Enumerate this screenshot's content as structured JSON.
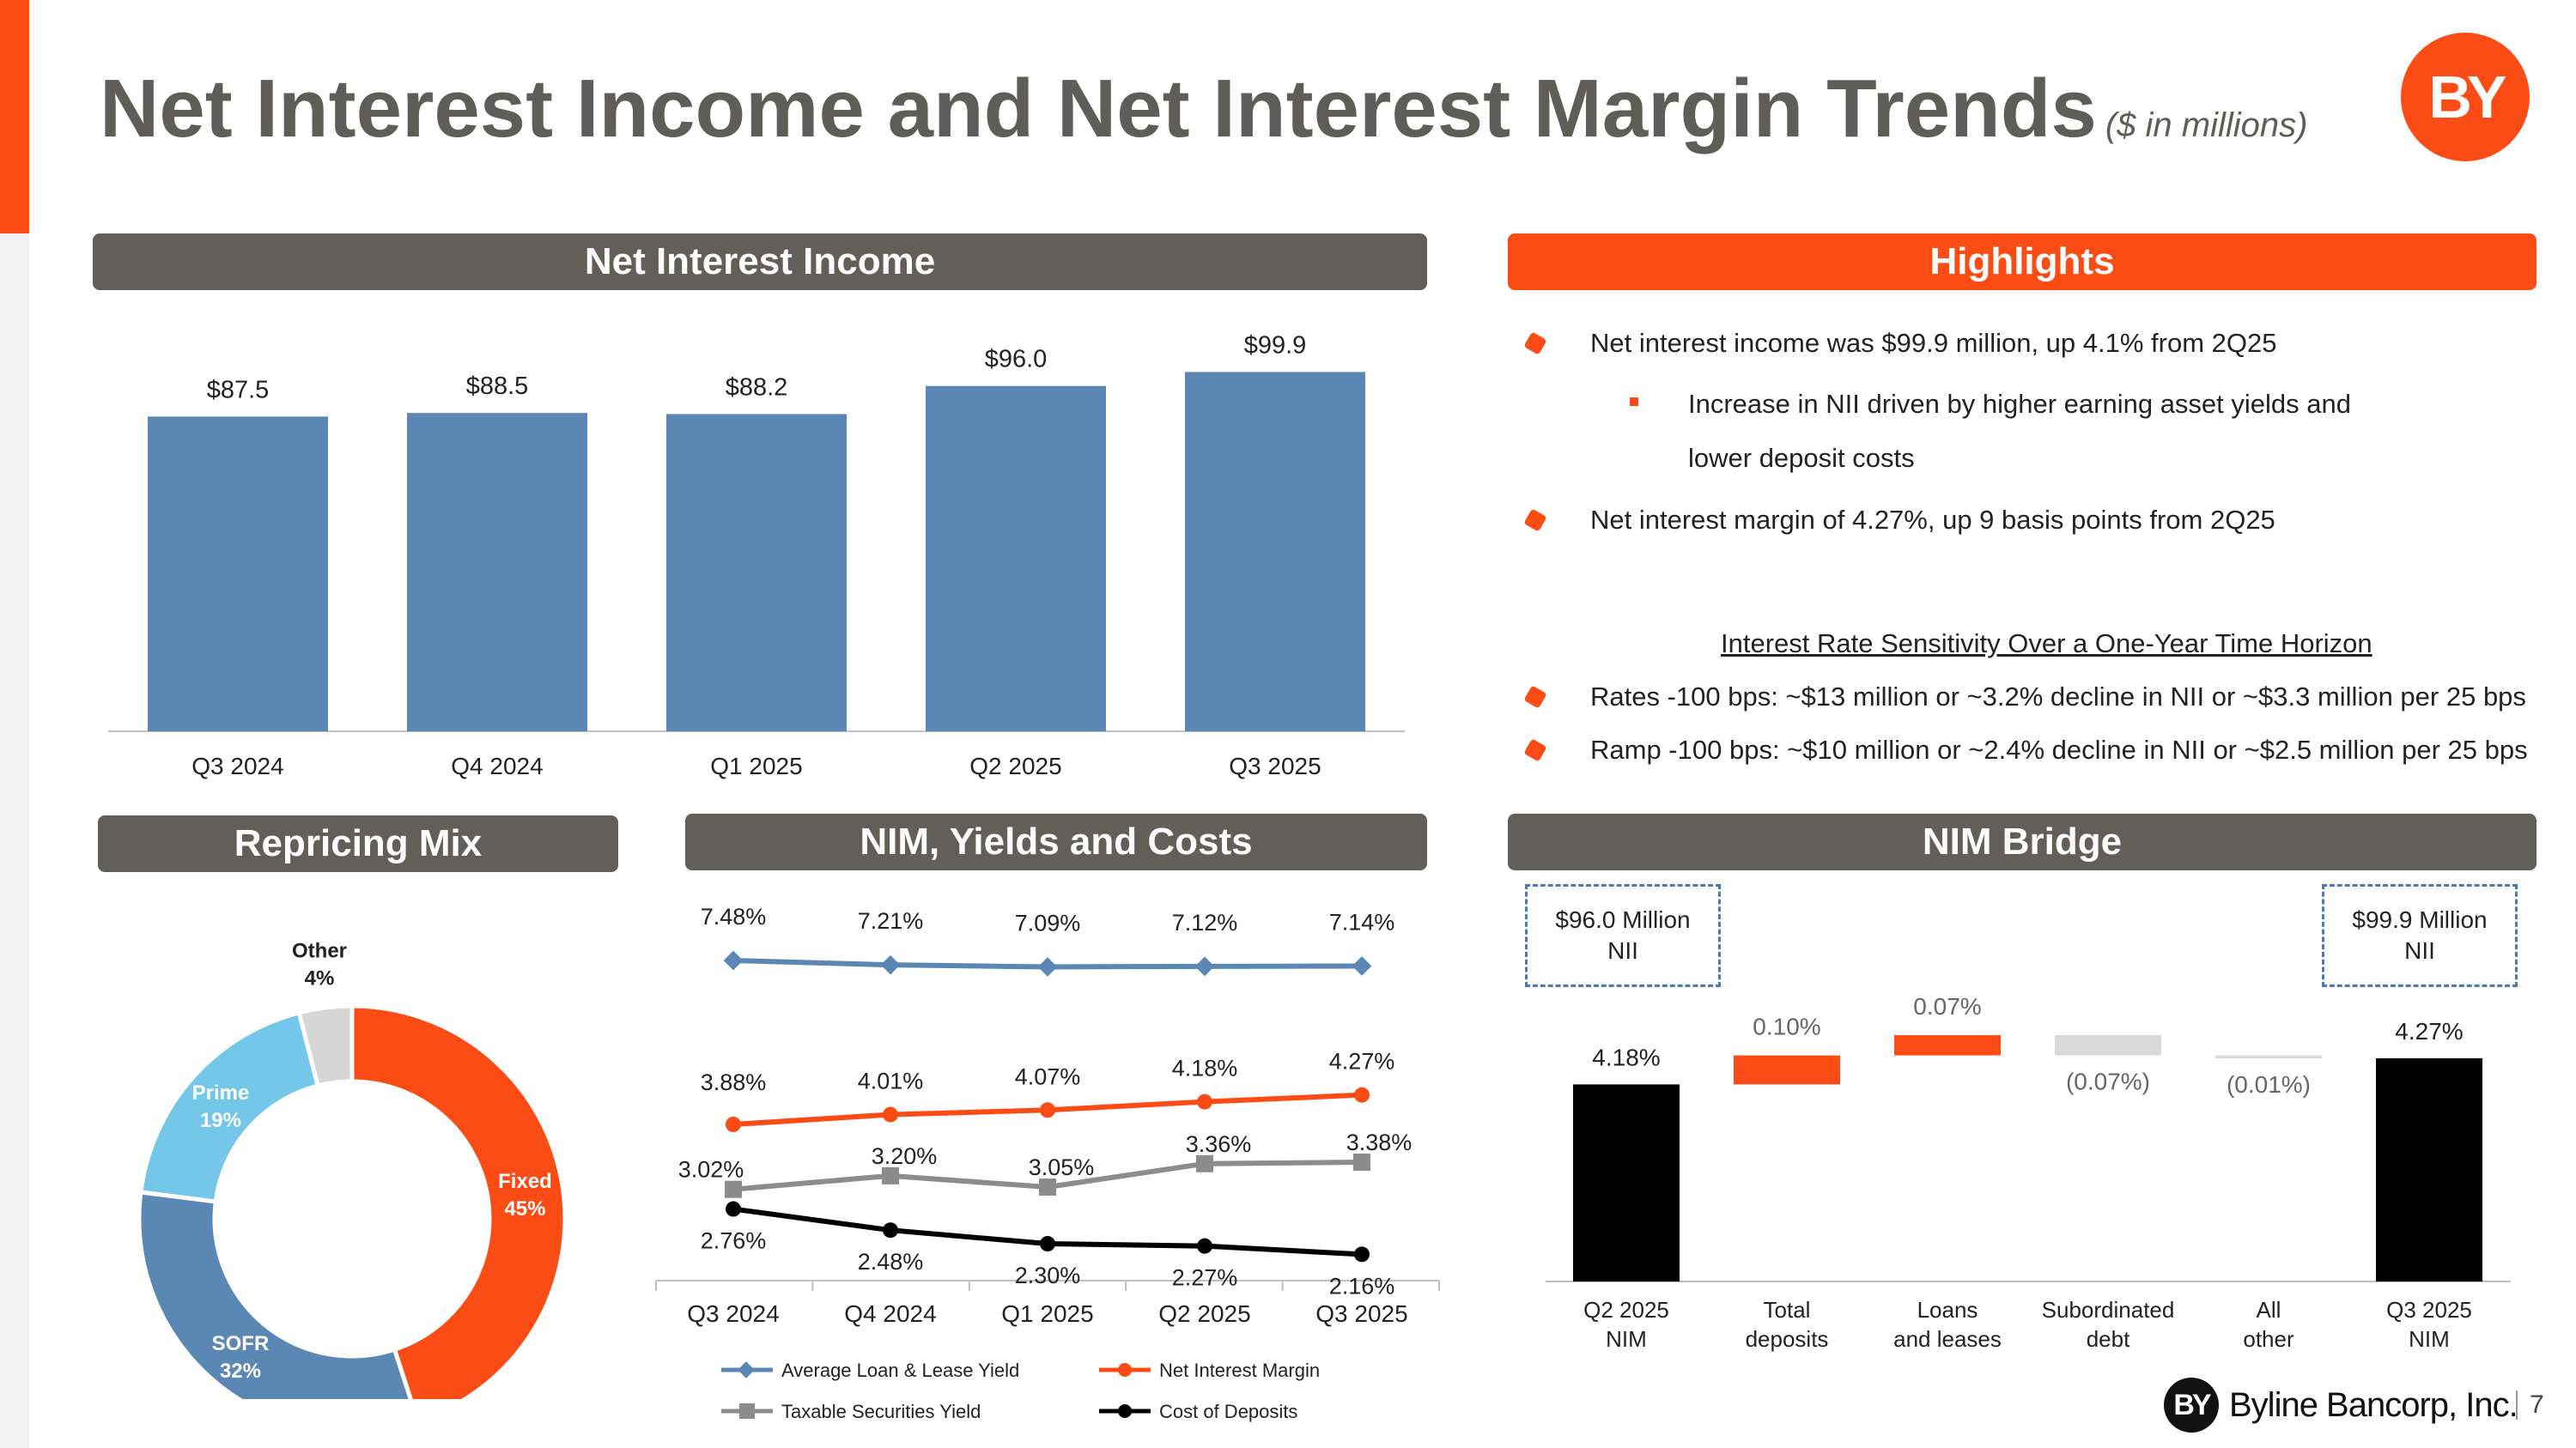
{
  "title": "Net Interest Income and Net Interest Margin Trends",
  "title_sub": "($ in millions)",
  "logo_text": "BY",
  "colors": {
    "accent": "#FC4C16",
    "header_gray": "#625f59",
    "bar_blue": "#5B87B5"
  },
  "sections": {
    "nii": "Net Interest Income",
    "highlights": "Highlights",
    "repricing": "Repricing Mix",
    "nim_yields": "NIM, Yields and Costs",
    "nim_bridge": "NIM Bridge"
  },
  "highlights": {
    "b1": "Net interest income was $99.9 million, up 4.1% from 2Q25",
    "b1_sub_line1": "Increase in NII driven by higher earning asset yields and",
    "b1_sub_line2": "lower deposit costs",
    "b2": "Net interest margin of 4.27%, up 9 basis points from 2Q25",
    "sensitivity_title": "Interest Rate Sensitivity Over a One-Year Time Horizon",
    "b3": "Rates -100 bps: ~$13 million or ~3.2% decline in NII or ~$3.3 million per 25 bps",
    "b4": "Ramp -100 bps: ~$10 million or ~2.4% decline in NII or ~$2.5 million per 25 bps"
  },
  "bridge_boxes": {
    "left": "$96.0 Million NII",
    "right": "$99.9 Million NII"
  },
  "footer": {
    "company": "Byline Bancorp, Inc.",
    "page": "7",
    "mark": "BY"
  },
  "chart_data": [
    {
      "type": "bar",
      "title": "Net Interest Income",
      "categories": [
        "Q3 2024",
        "Q4 2024",
        "Q1 2025",
        "Q2 2025",
        "Q3 2025"
      ],
      "values": [
        87.5,
        88.5,
        88.2,
        96.0,
        99.9
      ],
      "labels": [
        "$87.5",
        "$88.5",
        "$88.2",
        "$96.0",
        "$99.9"
      ],
      "ylim": [
        0,
        105
      ]
    },
    {
      "type": "pie",
      "title": "Repricing Mix",
      "donut": true,
      "slices": [
        {
          "name": "Fixed",
          "value": 45,
          "label": "45%",
          "color": "#FC4C16"
        },
        {
          "name": "SOFR",
          "value": 32,
          "label": "32%",
          "color": "#5B87B5"
        },
        {
          "name": "Prime",
          "value": 19,
          "label": "19%",
          "color": "#74C7E8"
        },
        {
          "name": "Other",
          "value": 4,
          "label": "4%",
          "color": "#D6D6D6"
        }
      ]
    },
    {
      "type": "line",
      "title": "NIM, Yields and Costs",
      "categories": [
        "Q3 2024",
        "Q4 2024",
        "Q1 2025",
        "Q2 2025",
        "Q3 2025"
      ],
      "series": [
        {
          "name": "Average Loan & Lease Yield",
          "color": "#5B87B5",
          "marker": "diamond",
          "values": [
            7.48,
            7.21,
            7.09,
            7.12,
            7.14
          ],
          "labels": [
            "7.48%",
            "7.21%",
            "7.09%",
            "7.12%",
            "7.14%"
          ]
        },
        {
          "name": "Net Interest Margin",
          "color": "#FC4C16",
          "marker": "circle",
          "values": [
            3.88,
            4.01,
            4.07,
            4.18,
            4.27
          ],
          "labels": [
            "3.88%",
            "4.01%",
            "4.07%",
            "4.18%",
            "4.27%"
          ]
        },
        {
          "name": "Taxable Securities Yield",
          "color": "#8c8c8c",
          "marker": "square",
          "values": [
            3.02,
            3.2,
            3.05,
            3.36,
            3.38
          ],
          "labels": [
            "3.02%",
            "3.20%",
            "3.05%",
            "3.36%",
            "3.38%"
          ]
        },
        {
          "name": "Cost of Deposits",
          "color": "#000000",
          "marker": "circle",
          "values": [
            2.76,
            2.48,
            2.3,
            2.27,
            2.16
          ],
          "labels": [
            "2.76%",
            "2.48%",
            "2.30%",
            "2.27%",
            "2.16%"
          ]
        }
      ]
    },
    {
      "type": "bar",
      "subtype": "waterfall",
      "title": "NIM Bridge",
      "categories": [
        "Q2 2025 NIM",
        "Total deposits",
        "Loans and leases",
        "Subordinated debt",
        "All other",
        "Q3 2025 NIM"
      ],
      "category_lines": [
        [
          "Q2 2025",
          "NIM"
        ],
        [
          "Total",
          "deposits"
        ],
        [
          "Loans",
          "and leases"
        ],
        [
          "Subordinated",
          "debt"
        ],
        [
          "All",
          "other"
        ],
        [
          "Q3 2025",
          "NIM"
        ]
      ],
      "values": [
        4.18,
        0.1,
        0.07,
        -0.07,
        -0.01,
        4.27
      ],
      "labels": [
        "4.18%",
        "0.10%",
        "0.07%",
        "(0.07%)",
        "(0.01%)",
        "4.27%"
      ],
      "kinds": [
        "total",
        "delta",
        "delta",
        "delta",
        "delta",
        "total"
      ],
      "colors": [
        "#000000",
        "#FC4C16",
        "#FC4C16",
        "#D9D9D9",
        "#D9D9D9",
        "#000000"
      ],
      "baseline": 3.5
    }
  ]
}
